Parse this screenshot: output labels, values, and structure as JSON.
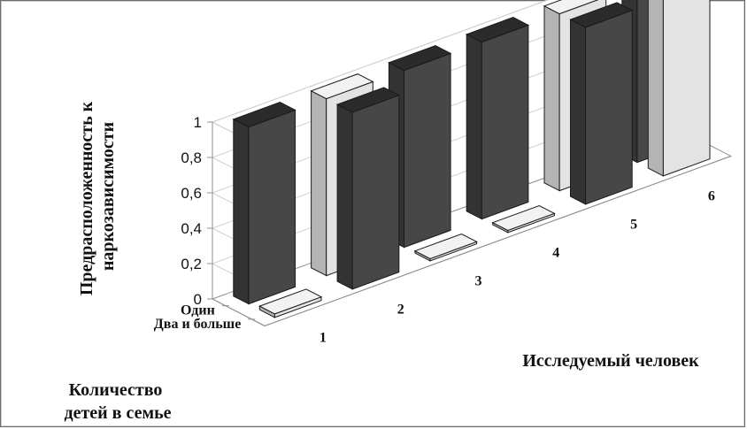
{
  "chart_data": {
    "type": "bar",
    "variant": "3d-column",
    "title": "",
    "zlabel_lines": [
      "Предрасположенность к",
      "наркозависимости"
    ],
    "xlabel": "Исследуемый человек",
    "ylabel_lines": [
      "Количество",
      "детей в семье"
    ],
    "z_ticks": [
      "0",
      "0,2",
      "0,4",
      "0,6",
      "0,8",
      "1"
    ],
    "zlim": [
      0,
      1
    ],
    "persons": [
      "1",
      "2",
      "3",
      "4",
      "5",
      "6"
    ],
    "rows": [
      "Один",
      "Два и больше"
    ],
    "grid": true,
    "colors": {
      "dark": "#474747",
      "light": "#e2e2e2",
      "grid": "#cfcfcf",
      "axis": "#909090"
    },
    "bars": [
      {
        "person": "1",
        "row": "Один",
        "value": 1,
        "shade": "dark"
      },
      {
        "person": "1",
        "row": "Два и больше",
        "value": 0.02,
        "shade": "light"
      },
      {
        "person": "2",
        "row": "Один",
        "value": 1,
        "shade": "light"
      },
      {
        "person": "2",
        "row": "Два и больше",
        "value": 1,
        "shade": "dark"
      },
      {
        "person": "3",
        "row": "Один",
        "value": 1,
        "shade": "dark"
      },
      {
        "person": "3",
        "row": "Два и больше",
        "value": 0,
        "shade": "light"
      },
      {
        "person": "4",
        "row": "Один",
        "value": 1,
        "shade": "dark"
      },
      {
        "person": "4",
        "row": "Два и больше",
        "value": 0,
        "shade": "light"
      },
      {
        "person": "5",
        "row": "Один",
        "value": 1,
        "shade": "light"
      },
      {
        "person": "5",
        "row": "Два и больше",
        "value": 1,
        "shade": "dark"
      },
      {
        "person": "6",
        "row": "Один",
        "value": 1,
        "shade": "dark"
      },
      {
        "person": "6",
        "row": "Два и больше",
        "value": 1,
        "shade": "light"
      }
    ]
  }
}
